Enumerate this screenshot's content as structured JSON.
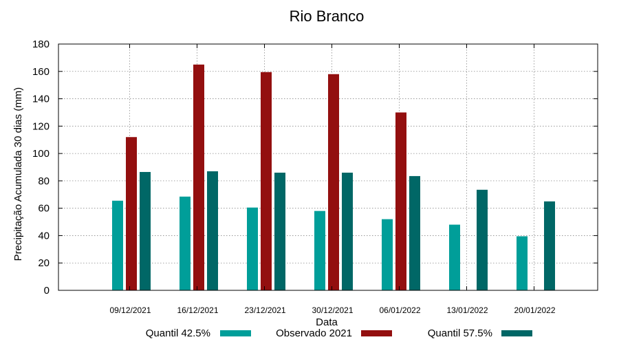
{
  "chart_data": {
    "type": "bar",
    "title": "Rio Branco",
    "xlabel": "Data",
    "ylabel": "Precipitação Acumulada 30 dias (mm)",
    "ylim": [
      0,
      180
    ],
    "yticks": [
      0,
      20,
      40,
      60,
      80,
      100,
      120,
      140,
      160,
      180
    ],
    "grid": true,
    "legend_position": "bottom",
    "categories": [
      "09/12/2021",
      "16/12/2021",
      "23/12/2021",
      "30/12/2021",
      "06/01/2022",
      "13/01/2022",
      "20/01/2022"
    ],
    "series": [
      {
        "name": "Quantil 42.5%",
        "color": "#009e99",
        "values": [
          65.5,
          68.5,
          60.5,
          58,
          52,
          48,
          39.5
        ]
      },
      {
        "name": "Observado 2021",
        "color": "#930f0f",
        "values": [
          112,
          165,
          159.5,
          158,
          130,
          null,
          null
        ]
      },
      {
        "name": "Quantil 57.5%",
        "color": "#006766",
        "values": [
          86.5,
          87,
          86,
          86,
          83.5,
          73.5,
          65
        ]
      }
    ]
  }
}
